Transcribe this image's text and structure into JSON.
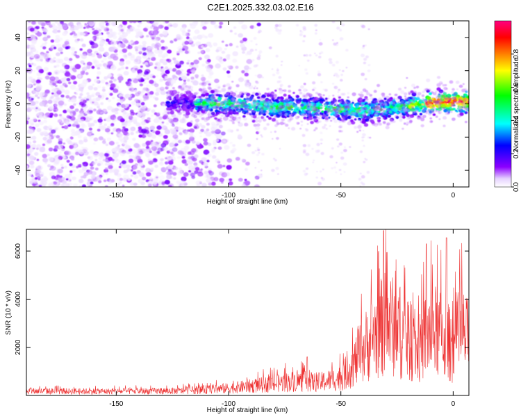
{
  "title": "C2E1.2025.332.03.02.E16",
  "chart_data": [
    {
      "type": "heatmap",
      "xlabel": "Height of straight line (km)",
      "ylabel": "Frequency (Hz)",
      "xlim": [
        -190,
        7
      ],
      "ylim": [
        -50,
        50
      ],
      "x_ticks": [
        -150,
        -100,
        -50,
        0
      ],
      "y_ticks": [
        -40,
        -20,
        0,
        20,
        40
      ],
      "colorbar": {
        "label": "Normalized spectral amplitude",
        "range": [
          0,
          1
        ],
        "ticks": [
          0.0,
          0.2,
          0.4,
          0.6,
          0.8
        ],
        "colormap": [
          "#ffffff",
          "#e6d2ff",
          "#8c00ff",
          "#0000ff",
          "#00ffff",
          "#00ff00",
          "#ffff00",
          "#ff8000",
          "#ff0000",
          "#ff0080"
        ]
      },
      "ridge": {
        "description_points": [
          {
            "x": -127,
            "y": 0.5
          },
          {
            "x": -100,
            "y": 0.0
          },
          {
            "x": -80,
            "y": -1.5
          },
          {
            "x": -60,
            "y": -2.5
          },
          {
            "x": -40,
            "y": -4.0
          },
          {
            "x": -20,
            "y": -1.5
          },
          {
            "x": -10,
            "y": 0.5
          },
          {
            "x": 0,
            "y": 1.5
          },
          {
            "x": 7,
            "y": 1.0
          }
        ],
        "start_x": -127,
        "peak_amplitude_region_x": [
          -12,
          7
        ]
      },
      "noise_region_x": [
        -190,
        -95
      ]
    },
    {
      "type": "line",
      "xlabel": "Height of straight line (km)",
      "ylabel": "SNR (10 * v/v)",
      "xlim": [
        -190,
        7
      ],
      "ylim": [
        0,
        6900
      ],
      "x_ticks": [
        -150,
        -100,
        -50,
        0
      ],
      "y_ticks": [
        2000,
        4000,
        6000
      ],
      "series_color": "#ee3333",
      "envelope": [
        {
          "x": -190,
          "y": 300
        },
        {
          "x": -150,
          "y": 280
        },
        {
          "x": -120,
          "y": 320
        },
        {
          "x": -100,
          "y": 500
        },
        {
          "x": -80,
          "y": 800
        },
        {
          "x": -70,
          "y": 1000
        },
        {
          "x": -60,
          "y": 900
        },
        {
          "x": -50,
          "y": 1200
        },
        {
          "x": -45,
          "y": 2000
        },
        {
          "x": -40,
          "y": 3200
        },
        {
          "x": -35,
          "y": 4200
        },
        {
          "x": -30,
          "y": 5000
        },
        {
          "x": -25,
          "y": 4600
        },
        {
          "x": -20,
          "y": 3600
        },
        {
          "x": -15,
          "y": 3200
        },
        {
          "x": -12,
          "y": 4200
        },
        {
          "x": -8,
          "y": 4400
        },
        {
          "x": -4,
          "y": 4000
        },
        {
          "x": 0,
          "y": 3300
        },
        {
          "x": 4,
          "y": 4400
        },
        {
          "x": 7,
          "y": 3600
        }
      ],
      "peaks": [
        {
          "x": -31,
          "y": 6850
        },
        {
          "x": -3,
          "y": 6550
        },
        {
          "x": -12,
          "y": 6300
        },
        {
          "x": -65,
          "y": 1600
        }
      ]
    }
  ]
}
